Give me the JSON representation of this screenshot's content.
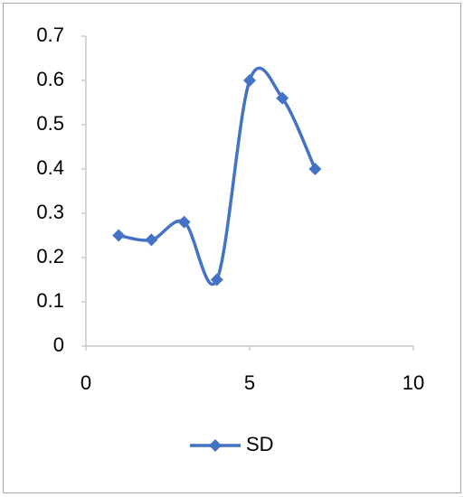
{
  "chart_data": {
    "type": "scatter-smooth",
    "x": [
      1,
      2,
      3,
      4,
      5,
      6,
      7
    ],
    "series": [
      {
        "name": "SD",
        "color": "#4472c4",
        "values": [
          0.25,
          0.24,
          0.28,
          0.15,
          0.6,
          0.56,
          0.4
        ]
      }
    ],
    "xlim": [
      0,
      10
    ],
    "xticks": [
      0,
      5,
      10
    ],
    "ylim": [
      0,
      0.7
    ],
    "yticks": [
      0,
      0.1,
      0.2,
      0.3,
      0.4,
      0.5,
      0.6,
      0.7
    ],
    "grid": false,
    "legend": "bottom"
  }
}
